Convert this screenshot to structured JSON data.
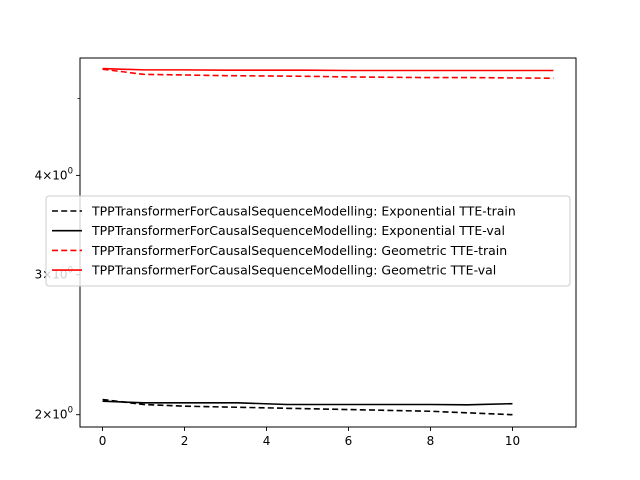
{
  "chart_data": {
    "type": "line",
    "title": "",
    "xlabel": "",
    "ylabel": "",
    "xlim": [
      -0.55,
      11.55
    ],
    "ylim": [
      1.93,
      5.62
    ],
    "yscale": "log",
    "grid": false,
    "legend_position": "center-left",
    "x_ticks": [
      0,
      2,
      4,
      6,
      8,
      10
    ],
    "y_ticks": [
      {
        "value": 2,
        "label_base": "2",
        "label_mult": "×",
        "label_exp_base": "10",
        "label_exp": "0"
      },
      {
        "value": 3,
        "label_base": "3",
        "label_mult": "×",
        "label_exp_base": "10",
        "label_exp": "0"
      },
      {
        "value": 4,
        "label_base": "4",
        "label_mult": "×",
        "label_exp_base": "10",
        "label_exp": "0"
      }
    ],
    "y_minor_ticks": [
      5
    ],
    "series": [
      {
        "name": "TPPTransformerForCausalSequenceModelling: Exponential TTE-train",
        "color": "#000000",
        "dash": "dashed",
        "x": [
          0,
          1,
          2,
          3,
          4,
          5,
          6,
          7,
          8,
          9,
          10
        ],
        "y": [
          2.09,
          2.06,
          2.05,
          2.045,
          2.04,
          2.035,
          2.03,
          2.025,
          2.02,
          2.01,
          2.0
        ]
      },
      {
        "name": "TPPTransformerForCausalSequenceModelling: Exponential TTE-val",
        "color": "#000000",
        "dash": "solid",
        "x": [
          0,
          1,
          2,
          3.3,
          4.5,
          6,
          7,
          8,
          8.9,
          10
        ],
        "y": [
          2.08,
          2.07,
          2.07,
          2.07,
          2.06,
          2.06,
          2.06,
          2.06,
          2.058,
          2.065
        ]
      },
      {
        "name": "TPPTransformerForCausalSequenceModelling: Geometric TTE-train",
        "color": "#ff0000",
        "dash": "dashed",
        "x": [
          0,
          1,
          2,
          3,
          4,
          5,
          6,
          7,
          8,
          9,
          10,
          11
        ],
        "y": [
          5.44,
          5.36,
          5.35,
          5.34,
          5.335,
          5.33,
          5.32,
          5.315,
          5.31,
          5.31,
          5.305,
          5.3
        ]
      },
      {
        "name": "TPPTransformerForCausalSequenceModelling: Geometric TTE-val",
        "color": "#ff0000",
        "dash": "solid",
        "x": [
          0,
          1,
          2,
          3,
          4,
          5,
          6,
          7,
          8,
          9,
          10,
          11
        ],
        "y": [
          5.45,
          5.43,
          5.43,
          5.425,
          5.425,
          5.425,
          5.42,
          5.42,
          5.42,
          5.42,
          5.42,
          5.42
        ]
      }
    ]
  }
}
